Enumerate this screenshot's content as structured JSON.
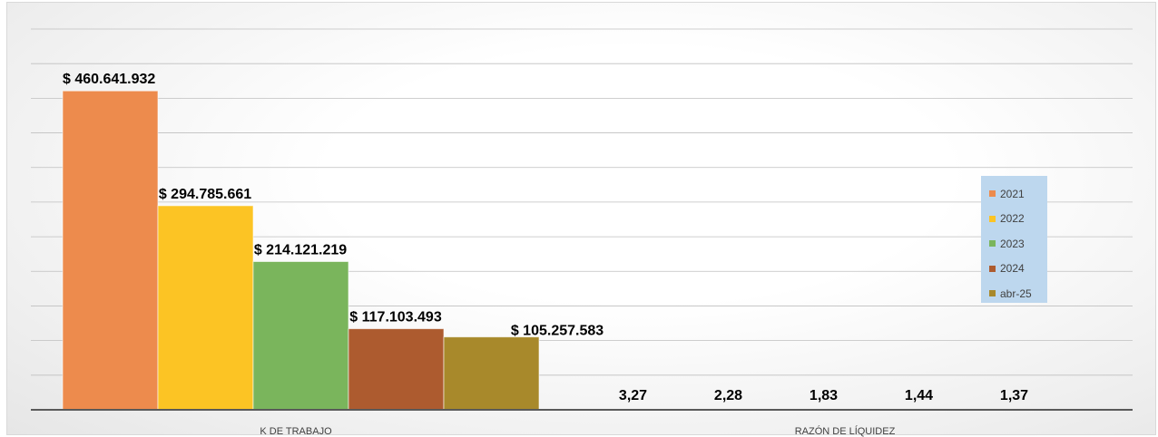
{
  "chart_data": {
    "type": "bar",
    "categories": [
      "K DE TRABAJO",
      "RAZÓN DE LÍQUIDEZ"
    ],
    "series": [
      {
        "name": "2021",
        "color": "#ed8b4d",
        "values": [
          460641932,
          3.27
        ],
        "labels": [
          "$ 460.641.932",
          "3,27"
        ]
      },
      {
        "name": "2022",
        "color": "#fcc424",
        "values": [
          294785661,
          2.28
        ],
        "labels": [
          "$ 294.785.661",
          "2,28"
        ]
      },
      {
        "name": "2023",
        "color": "#7ab55c",
        "values": [
          214121219,
          1.83
        ],
        "labels": [
          "$ 214.121.219",
          "1,83"
        ]
      },
      {
        "name": "2024",
        "color": "#ad5b2f",
        "values": [
          117103493,
          1.44
        ],
        "labels": [
          "$ 117.103.493",
          "1,44"
        ]
      },
      {
        "name": "abr-25",
        "color": "#a8892b",
        "values": [
          105257583,
          1.37
        ],
        "labels": [
          "$ 105.257.583",
          "1,37"
        ]
      }
    ],
    "ylim": [
      0,
      550000000
    ],
    "grid": true,
    "legend_position": "right",
    "legend_background": "#bdd7ee"
  }
}
